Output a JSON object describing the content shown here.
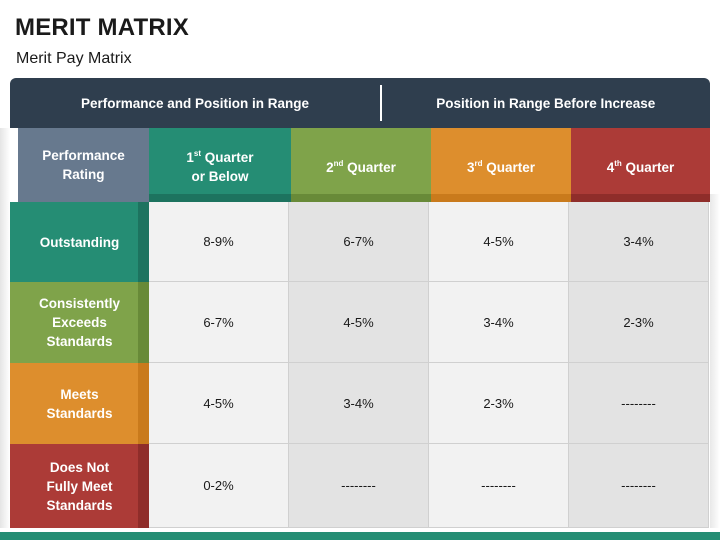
{
  "title": "MERIT MATRIX",
  "subtitle": "Merit Pay Matrix",
  "header": {
    "left": "Performance and Position in Range",
    "right": "Position in Range Before Increase"
  },
  "columns": {
    "rating": {
      "line1": "Performance",
      "line2": "Rating"
    },
    "q1": {
      "num": "1",
      "sup": "st",
      "rest": " Quarter",
      "line2": "or Below"
    },
    "q2": {
      "num": "2",
      "sup": "nd",
      "rest": " Quarter"
    },
    "q3": {
      "num": "3",
      "sup": "rd",
      "rest": " Quarter"
    },
    "q4": {
      "num": "4",
      "sup": "th",
      "rest": " Quarter"
    }
  },
  "rows": [
    {
      "label_lines": [
        "Outstanding"
      ],
      "values": [
        "8-9%",
        "6-7%",
        "4-5%",
        "3-4%"
      ]
    },
    {
      "label_lines": [
        "Consistently",
        "Exceeds",
        "Standards"
      ],
      "values": [
        "6-7%",
        "4-5%",
        "3-4%",
        "2-3%"
      ]
    },
    {
      "label_lines": [
        "Meets",
        "Standards"
      ],
      "values": [
        "4-5%",
        "3-4%",
        "2-3%",
        "--------"
      ]
    },
    {
      "label_lines": [
        "Does Not",
        "Fully Meet",
        "Standards"
      ],
      "values": [
        "0-2%",
        "--------",
        "--------",
        "--------"
      ]
    }
  ],
  "colors": {
    "header_dark": "#2f3e4e",
    "rating_header": "#67798e",
    "teal": "#258d74",
    "green": "#7fa34a",
    "orange": "#dd8e2d",
    "red": "#ac3b37"
  }
}
